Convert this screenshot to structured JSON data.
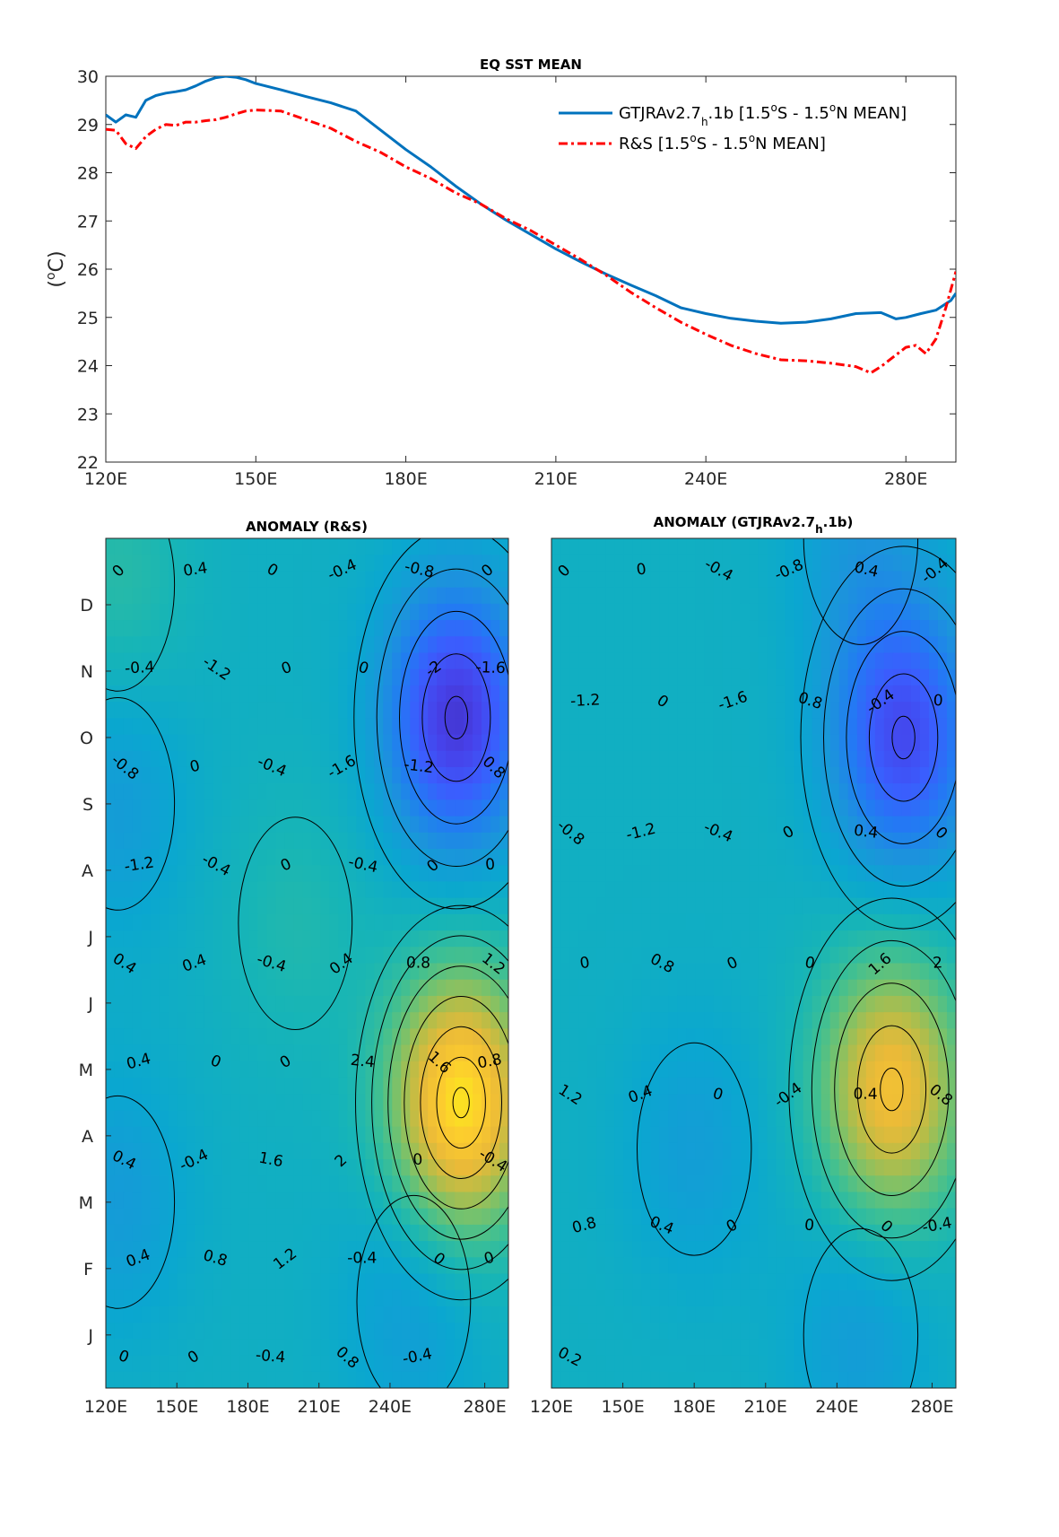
{
  "chart_data": [
    {
      "type": "line",
      "title": "EQ SST MEAN",
      "ylabel": "(°C)",
      "ylabel_parts": [
        "(",
        "o",
        "C)"
      ],
      "xlim": [
        120,
        290
      ],
      "ylim": [
        22,
        30
      ],
      "xticks": [
        120,
        150,
        180,
        210,
        240,
        280
      ],
      "xtick_labels": [
        "120E",
        "150E",
        "180E",
        "210E",
        "240E",
        "280E"
      ],
      "yticks": [
        22,
        23,
        24,
        25,
        26,
        27,
        28,
        29,
        30
      ],
      "grid": false,
      "legend_position": "top-right",
      "series": [
        {
          "name": "GTJRAv2.7h.1b [1.5°S - 1.5°N MEAN]",
          "legend_parts": {
            "a": "GTJRAv2.7",
            "sub": "h",
            "b": ".1b [1.5",
            "sup1": "o",
            "c": "S - 1.5",
            "sup2": "o",
            "d": "N MEAN]"
          },
          "color": "#0072BD",
          "style": "solid",
          "x": [
            120,
            122,
            124,
            126,
            128,
            130,
            132,
            134,
            136,
            138,
            140,
            142,
            144,
            146,
            148,
            150,
            155,
            160,
            165,
            170,
            175,
            180,
            185,
            190,
            195,
            200,
            205,
            210,
            215,
            220,
            225,
            230,
            235,
            240,
            245,
            250,
            255,
            260,
            265,
            270,
            275,
            278,
            280,
            283,
            286,
            289,
            290
          ],
          "y": [
            29.2,
            29.05,
            29.2,
            29.15,
            29.5,
            29.6,
            29.65,
            29.68,
            29.72,
            29.8,
            29.9,
            29.97,
            30.0,
            29.98,
            29.93,
            29.85,
            29.72,
            29.58,
            29.45,
            29.28,
            28.88,
            28.48,
            28.12,
            27.72,
            27.35,
            27.02,
            26.72,
            26.42,
            26.15,
            25.9,
            25.67,
            25.45,
            25.2,
            25.08,
            24.98,
            24.92,
            24.88,
            24.9,
            24.97,
            25.08,
            25.1,
            24.97,
            25.0,
            25.08,
            25.15,
            25.35,
            25.5
          ]
        },
        {
          "name": "R&S [1.5°S - 1.5°N MEAN]",
          "legend_parts": {
            "a": "R&S [1.5",
            "sup1": "o",
            "c": "S - 1.5",
            "sup2": "o",
            "d": "N MEAN]"
          },
          "color": "#FF0000",
          "style": "dashdot",
          "x": [
            120,
            122,
            124,
            126,
            128,
            130,
            132,
            134,
            136,
            138,
            140,
            142,
            144,
            146,
            148,
            150,
            155,
            160,
            165,
            170,
            175,
            180,
            185,
            190,
            195,
            200,
            205,
            210,
            215,
            220,
            225,
            230,
            235,
            240,
            245,
            250,
            255,
            260,
            265,
            270,
            273,
            275,
            278,
            280,
            282,
            284,
            286,
            288,
            290
          ],
          "y": [
            28.9,
            28.88,
            28.6,
            28.5,
            28.75,
            28.9,
            29.0,
            28.98,
            29.05,
            29.05,
            29.08,
            29.1,
            29.15,
            29.22,
            29.28,
            29.3,
            29.28,
            29.1,
            28.92,
            28.65,
            28.42,
            28.12,
            27.88,
            27.58,
            27.35,
            27.05,
            26.8,
            26.5,
            26.2,
            25.88,
            25.52,
            25.2,
            24.9,
            24.65,
            24.42,
            24.25,
            24.12,
            24.1,
            24.05,
            23.98,
            23.85,
            23.98,
            24.22,
            24.38,
            24.42,
            24.25,
            24.55,
            25.2,
            25.95
          ]
        }
      ]
    },
    {
      "type": "heatmap",
      "title": "ANOMALY (R&S)",
      "xlim": [
        120,
        290
      ],
      "xtick_labels": [
        "120E",
        "150E",
        "180E",
        "210E",
        "240E",
        "280E"
      ],
      "ytick_labels": [
        "J",
        "F",
        "M",
        "A",
        "M",
        "J",
        "J",
        "A",
        "S",
        "O",
        "N",
        "D"
      ],
      "contour_labels": [
        "0",
        "0.4",
        "0",
        "-0.4",
        "-0.8",
        "0",
        "-0.4",
        "-1.2",
        "0",
        "0",
        "-2",
        "-1.6",
        "-0.8",
        "0",
        "-0.4",
        "-1.6",
        "-1.2",
        "0.8",
        "-1.2",
        "-0.4",
        "0",
        "-0.4",
        "0",
        "0",
        "0.4",
        "0.4",
        "-0.4",
        "0.4",
        "0.8",
        "1.2",
        "0.4",
        "0",
        "0",
        "2.4",
        "1.6",
        "0.8",
        "0.4",
        "-0.4",
        "1.6",
        "2",
        "0",
        "-0.4",
        "0.4",
        "0.8",
        "1.2",
        "-0.4",
        "0",
        "0",
        "0",
        "0",
        "-0.4",
        "0.8",
        "-0.4"
      ],
      "anomaly_centers": [
        {
          "lon": 270,
          "month": 3.5,
          "value": 2.6
        },
        {
          "lon": 268,
          "month": 9.3,
          "value": -2.1
        },
        {
          "lon": 125,
          "month": 8.0,
          "value": -0.5
        },
        {
          "lon": 125,
          "month": 2.0,
          "value": -0.5
        },
        {
          "lon": 125,
          "month": 11.3,
          "value": 0.4
        },
        {
          "lon": 250,
          "month": 0.5,
          "value": -0.5
        },
        {
          "lon": 200,
          "month": 6.2,
          "value": 0.3
        }
      ]
    },
    {
      "type": "heatmap",
      "title": "ANOMALY (GTJRAv2.7h.1b)",
      "title_parts": {
        "a": "ANOMALY (GTJRAv2.7",
        "sub": "h",
        "b": ".1b)"
      },
      "xlim": [
        120,
        290
      ],
      "xtick_labels": [
        "120E",
        "150E",
        "180E",
        "210E",
        "240E",
        "280E"
      ],
      "contour_labels": [
        "0",
        "0",
        "-0.4",
        "-0.8",
        "0.4",
        "-0.4",
        "-1.2",
        "0",
        "-1.6",
        "0.8",
        "-0.4",
        "0",
        "-0.8",
        "-1.2",
        "-0.4",
        "0",
        "0.4",
        "0",
        "0",
        "0.8",
        "0",
        "0",
        "1.6",
        "2",
        "1.2",
        "0.4",
        "0",
        "-0.4",
        "0.4",
        "0.8",
        "0.8",
        "0.4",
        "0",
        "0",
        "0",
        "-0.4",
        "0.2"
      ],
      "anomaly_centers": [
        {
          "lon": 263,
          "month": 3.7,
          "value": 2.1
        },
        {
          "lon": 268,
          "month": 9.0,
          "value": -1.8
        },
        {
          "lon": 180,
          "month": 2.8,
          "value": -0.45
        },
        {
          "lon": 250,
          "month": 0.0,
          "value": -0.5
        },
        {
          "lon": 250,
          "month": 12.0,
          "value": -0.5
        }
      ]
    }
  ]
}
